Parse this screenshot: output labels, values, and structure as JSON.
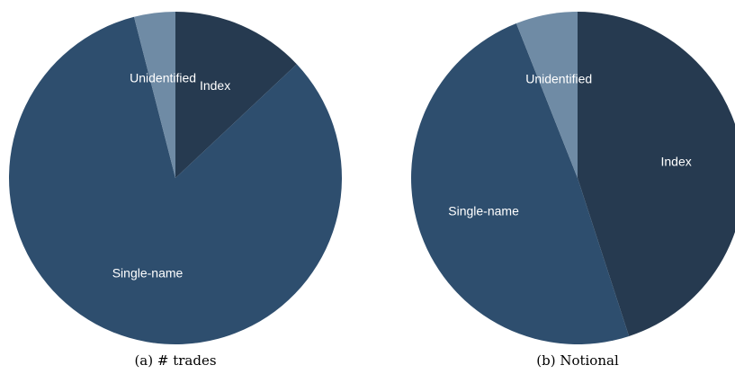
{
  "chart_data": [
    {
      "type": "pie",
      "title": "(a) # trades",
      "categories": [
        "Index",
        "Single-name",
        "Unidentified"
      ],
      "values": [
        13,
        83,
        4
      ],
      "colors": [
        "#263a50",
        "#2e4e6e",
        "#6f8ba5"
      ]
    },
    {
      "type": "pie",
      "title": "(b) Notional",
      "categories": [
        "Index",
        "Single-name",
        "Unidentified"
      ],
      "values": [
        45,
        49,
        6
      ],
      "colors": [
        "#263a50",
        "#2e4e6e",
        "#6f8ba5"
      ]
    }
  ]
}
